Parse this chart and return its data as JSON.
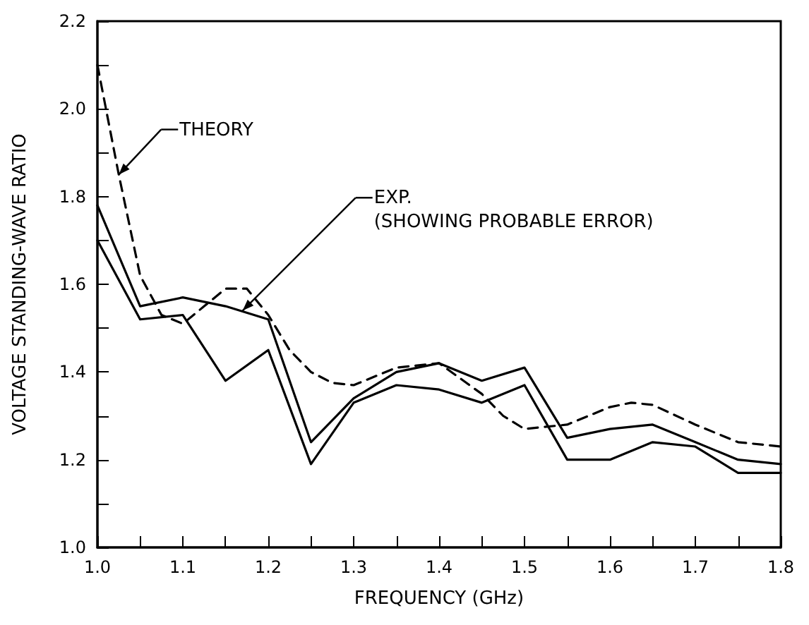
{
  "chart_data": {
    "type": "line",
    "xlabel": "FREQUENCY (GHz)",
    "ylabel": "VOLTAGE STANDING-WAVE RATIO",
    "xlim": [
      1.0,
      1.8
    ],
    "ylim": [
      1.0,
      2.2
    ],
    "xticks": [
      {
        "value": 1.0,
        "label": "1.0"
      },
      {
        "value": 1.05,
        "label": null
      },
      1.1,
      {
        "value": 1.15,
        "label": null
      },
      1.2,
      {
        "value": 1.25,
        "label": null
      },
      1.3,
      {
        "value": 1.35,
        "label": null
      },
      1.4,
      {
        "value": 1.45,
        "label": null
      },
      1.5,
      {
        "value": 1.55,
        "label": null
      },
      1.6,
      {
        "value": 1.65,
        "label": null
      },
      1.7,
      {
        "value": 1.75,
        "label": null
      },
      1.8
    ],
    "yticks": [
      {
        "value": 1.0,
        "label": "1.0"
      },
      {
        "value": 1.1,
        "label": null
      },
      1.2,
      {
        "value": 1.3,
        "label": null
      },
      1.4,
      {
        "value": 1.5,
        "label": null
      },
      1.6,
      {
        "value": 1.7,
        "label": null
      },
      1.8,
      {
        "value": 1.9,
        "label": null
      },
      {
        "value": 2.0,
        "label": "2.0"
      },
      {
        "value": 2.1,
        "label": null
      },
      2.2
    ],
    "grid": false,
    "marker": "none",
    "series": [
      {
        "color": "#000000",
        "line_style": "solid",
        "x": [
          1.0,
          1.05,
          1.1,
          1.15,
          1.2,
          1.25,
          1.3,
          1.35,
          1.4,
          1.45,
          1.5,
          1.55,
          1.6,
          1.65,
          1.7,
          1.75,
          1.8
        ],
        "values": [
          1.78,
          1.55,
          1.57,
          1.55,
          1.52,
          1.24,
          1.34,
          1.4,
          1.42,
          1.38,
          1.41,
          1.25,
          1.27,
          1.28,
          1.24,
          1.2,
          1.19
        ]
      },
      {
        "color": "#000000",
        "line_style": "solid",
        "x": [
          1.0,
          1.05,
          1.1,
          1.15,
          1.2,
          1.25,
          1.3,
          1.35,
          1.4,
          1.45,
          1.5,
          1.55,
          1.6,
          1.65,
          1.7,
          1.75,
          1.8
        ],
        "values": [
          1.7,
          1.52,
          1.53,
          1.38,
          1.45,
          1.19,
          1.33,
          1.37,
          1.36,
          1.33,
          1.37,
          1.2,
          1.2,
          1.24,
          1.23,
          1.17,
          1.17
        ]
      },
      {
        "color": "#000000",
        "line_style": "dashed",
        "x": [
          1.0,
          1.025,
          1.05,
          1.075,
          1.1,
          1.125,
          1.15,
          1.175,
          1.2,
          1.225,
          1.25,
          1.275,
          1.3,
          1.35,
          1.4,
          1.45,
          1.475,
          1.5,
          1.55,
          1.6,
          1.625,
          1.65,
          1.7,
          1.75,
          1.8
        ],
        "values": [
          2.1,
          1.85,
          1.62,
          1.53,
          1.51,
          1.55,
          1.59,
          1.59,
          1.53,
          1.45,
          1.4,
          1.375,
          1.37,
          1.41,
          1.42,
          1.35,
          1.3,
          1.27,
          1.28,
          1.32,
          1.33,
          1.325,
          1.28,
          1.24,
          1.23
        ]
      }
    ],
    "annotations": [
      {
        "text": "THEORY",
        "x": 1.025,
        "y": 1.85
      },
      {
        "text": "EXP.\n(SHOWING PROBABLE ERROR)",
        "x": 1.17,
        "y": 1.54
      }
    ]
  }
}
